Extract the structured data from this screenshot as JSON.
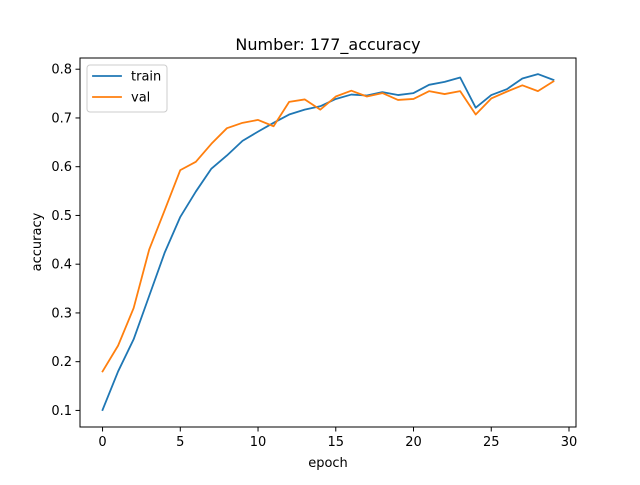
{
  "chart_data": {
    "type": "line",
    "title": "Number: 177_accuracy",
    "xlabel": "epoch",
    "ylabel": "accuracy",
    "xlim": [
      -1.45,
      30.45
    ],
    "ylim": [
      0.066,
      0.823
    ],
    "xticks": [
      0,
      5,
      10,
      15,
      20,
      25,
      30
    ],
    "yticks": [
      0.1,
      0.2,
      0.3,
      0.4,
      0.5,
      0.6,
      0.7,
      0.8
    ],
    "ytick_labels": [
      "0.1",
      "0.2",
      "0.3",
      "0.4",
      "0.5",
      "0.6",
      "0.7",
      "0.8"
    ],
    "grid": false,
    "legend": "top-left",
    "x": [
      0,
      1,
      2,
      3,
      4,
      5,
      6,
      7,
      8,
      9,
      10,
      11,
      12,
      13,
      14,
      15,
      16,
      17,
      18,
      19,
      20,
      21,
      22,
      23,
      24,
      25,
      26,
      27,
      28,
      29
    ],
    "series": [
      {
        "name": "train",
        "color": "#1f77b4",
        "values": [
          0.101,
          0.18,
          0.246,
          0.335,
          0.424,
          0.497,
          0.549,
          0.596,
          0.623,
          0.653,
          0.672,
          0.69,
          0.707,
          0.717,
          0.724,
          0.739,
          0.748,
          0.746,
          0.753,
          0.747,
          0.751,
          0.768,
          0.774,
          0.783,
          0.721,
          0.747,
          0.759,
          0.781,
          0.79,
          0.778
        ]
      },
      {
        "name": "val",
        "color": "#ff7f0e",
        "values": [
          0.18,
          0.233,
          0.31,
          0.43,
          0.511,
          0.593,
          0.61,
          0.647,
          0.679,
          0.69,
          0.696,
          0.683,
          0.733,
          0.738,
          0.717,
          0.744,
          0.756,
          0.744,
          0.751,
          0.737,
          0.739,
          0.755,
          0.749,
          0.755,
          0.707,
          0.74,
          0.754,
          0.767,
          0.755,
          0.775
        ]
      }
    ]
  }
}
